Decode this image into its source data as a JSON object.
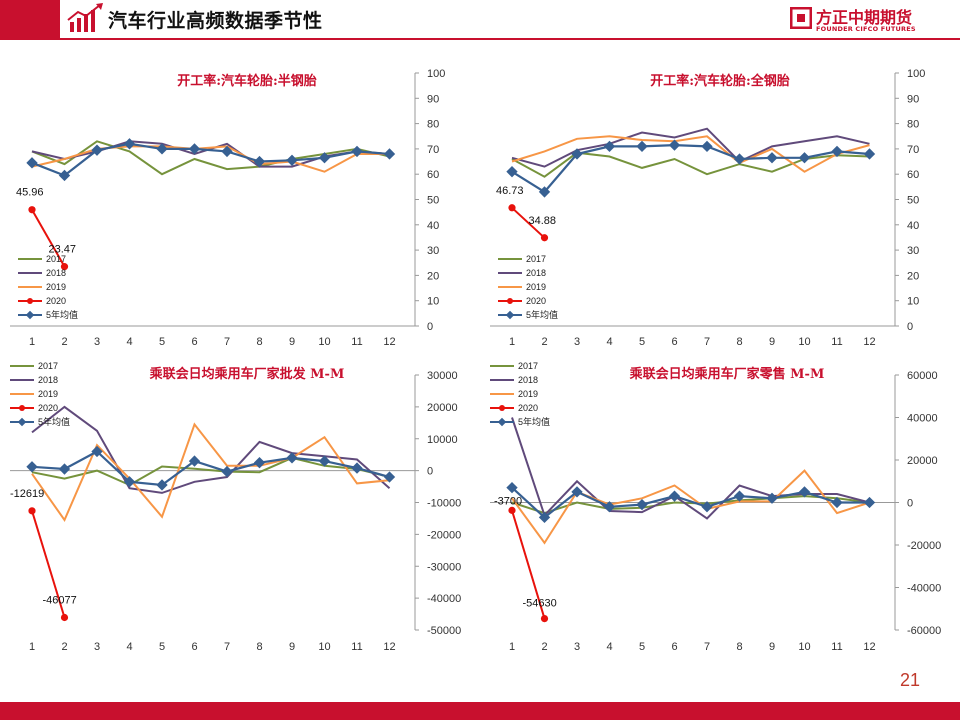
{
  "header": {
    "title": "汽车行业高频数据季节性",
    "brand_cn": "方正中期期货",
    "brand_en": "FOUNDER CIFCO FUTURES"
  },
  "page_number": "21",
  "colors": {
    "brand_red": "#c8102e",
    "s2017": "#76933c",
    "s2018": "#604a7b",
    "s2019": "#f79646",
    "s2020": "#e8120c",
    "s5yr": "#376092"
  },
  "chart_data": [
    {
      "type": "line",
      "title": "开工率:汽车轮胎:半钢胎",
      "x": [
        "1",
        "2",
        "3",
        "4",
        "5",
        "6",
        "7",
        "8",
        "9",
        "10",
        "11",
        "12"
      ],
      "ylim": [
        0,
        100
      ],
      "yticks": [
        "0",
        "10",
        "20",
        "30",
        "40",
        "50",
        "60",
        "70",
        "80",
        "90",
        "100"
      ],
      "legend": [
        "2017",
        "2018",
        "2019",
        "2020",
        "5年均值"
      ],
      "series": [
        {
          "name": "2017",
          "values": [
            69,
            64,
            73,
            69,
            60,
            66,
            62,
            63,
            66,
            68,
            70,
            67
          ]
        },
        {
          "name": "2018",
          "values": [
            69,
            66,
            69,
            73,
            72,
            68,
            72,
            63,
            63,
            67,
            69,
            68
          ]
        },
        {
          "name": "2019",
          "values": [
            63,
            66,
            70,
            71,
            71,
            70,
            71,
            64,
            65,
            61,
            68,
            68
          ]
        },
        {
          "name": "2020",
          "values": [
            45.96,
            23.47,
            null,
            null,
            null,
            null,
            null,
            null,
            null,
            null,
            null,
            null
          ]
        },
        {
          "name": "5年均值",
          "values": [
            64.5,
            59.5,
            69.5,
            72,
            70,
            70,
            69,
            65,
            65.5,
            66.5,
            69,
            68
          ]
        }
      ],
      "data_labels": [
        "45.96",
        "23.47"
      ]
    },
    {
      "type": "line",
      "title": "开工率:汽车轮胎:全钢胎",
      "x": [
        "1",
        "2",
        "3",
        "4",
        "5",
        "6",
        "7",
        "8",
        "9",
        "10",
        "11",
        "12"
      ],
      "ylim": [
        0,
        100
      ],
      "yticks": [
        "0",
        "10",
        "20",
        "30",
        "40",
        "50",
        "60",
        "70",
        "80",
        "90",
        "100"
      ],
      "legend": [
        "2017",
        "2018",
        "2019",
        "2020",
        "5年均值"
      ],
      "series": [
        {
          "name": "2017",
          "values": [
            66,
            59,
            68.5,
            67,
            62.5,
            66,
            60,
            64,
            61,
            66,
            67.5,
            67
          ]
        },
        {
          "name": "2018",
          "values": [
            66.5,
            63,
            69.5,
            72,
            76.5,
            74.5,
            78,
            65,
            71,
            73,
            75,
            72
          ]
        },
        {
          "name": "2019",
          "values": [
            65,
            69,
            74,
            75,
            73.5,
            73,
            75,
            64.5,
            70,
            61,
            68,
            71.5
          ]
        },
        {
          "name": "2020",
          "values": [
            46.73,
            34.88,
            null,
            null,
            null,
            null,
            null,
            null,
            null,
            null,
            null,
            null
          ]
        },
        {
          "name": "5年均值",
          "values": [
            61,
            53,
            68,
            71,
            71,
            71.5,
            71,
            66,
            66.5,
            66.5,
            69,
            68
          ]
        }
      ],
      "data_labels": [
        "46.73",
        "34.88"
      ]
    },
    {
      "type": "line",
      "title": "乘联会日均乘用车厂家批发 M-M",
      "x": [
        "1",
        "2",
        "3",
        "4",
        "5",
        "6",
        "7",
        "8",
        "9",
        "10",
        "11",
        "12"
      ],
      "ylim": [
        -50000,
        30000
      ],
      "yticks": [
        "-50000",
        "-40000",
        "-30000",
        "-20000",
        "-10000",
        "0",
        "10000",
        "20000",
        "30000"
      ],
      "legend": [
        "2017",
        "2018",
        "2019",
        "2020",
        "5年均值"
      ],
      "series": [
        {
          "name": "2017",
          "values": [
            -500,
            -2500,
            0,
            -4500,
            1300,
            600,
            -300,
            -500,
            4000,
            1500,
            500,
            -2000
          ]
        },
        {
          "name": "2018",
          "values": [
            12000,
            20000,
            12500,
            -5500,
            -7000,
            -3500,
            -2000,
            9000,
            5500,
            4500,
            3500,
            -5500
          ]
        },
        {
          "name": "2019",
          "values": [
            -1000,
            -15500,
            8000,
            -2500,
            -14500,
            14500,
            1500,
            1500,
            4000,
            10500,
            -4000,
            -3000
          ]
        },
        {
          "name": "2020",
          "values": [
            -12619,
            -46077,
            null,
            null,
            null,
            null,
            null,
            null,
            null,
            null,
            null,
            null
          ]
        },
        {
          "name": "5年均值",
          "values": [
            1200,
            500,
            6000,
            -3500,
            -4500,
            3000,
            -300,
            2500,
            4000,
            3000,
            800,
            -2000
          ]
        }
      ],
      "data_labels": [
        "-12619",
        "-46077"
      ]
    },
    {
      "type": "line",
      "title": "乘联会日均乘用车厂家零售 M-M",
      "x": [
        "1",
        "2",
        "3",
        "4",
        "5",
        "6",
        "7",
        "8",
        "9",
        "10",
        "11",
        "12"
      ],
      "ylim": [
        -60000,
        60000
      ],
      "yticks": [
        "-60000",
        "-40000",
        "-20000",
        "0",
        "20000",
        "40000",
        "60000"
      ],
      "legend": [
        "2017",
        "2018",
        "2019",
        "2020",
        "5年均值"
      ],
      "series": [
        {
          "name": "2017",
          "values": [
            0,
            -5000,
            0,
            -3000,
            -2500,
            0,
            -500,
            1000,
            2000,
            3000,
            2000,
            0
          ]
        },
        {
          "name": "2018",
          "values": [
            40000,
            -6000,
            10000,
            -4000,
            -4500,
            3000,
            -7500,
            8000,
            3000,
            4000,
            4000,
            0
          ]
        },
        {
          "name": "2019",
          "values": [
            2000,
            -19000,
            5000,
            -1000,
            2000,
            8000,
            -3000,
            500,
            500,
            15000,
            -5000,
            0
          ]
        },
        {
          "name": "2020",
          "values": [
            -3700,
            -54630,
            null,
            null,
            null,
            null,
            null,
            null,
            null,
            null,
            null,
            null
          ]
        },
        {
          "name": "5年均值",
          "values": [
            7000,
            -7000,
            5000,
            -2000,
            -1000,
            3000,
            -2000,
            3000,
            2000,
            5000,
            0,
            0
          ]
        }
      ],
      "data_labels": [
        "-3700",
        "-54630"
      ]
    }
  ]
}
